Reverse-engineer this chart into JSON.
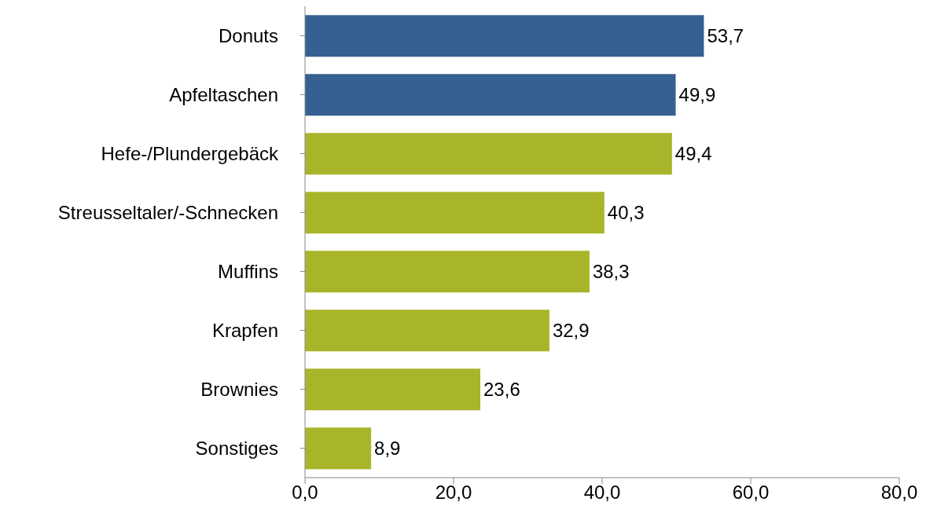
{
  "chart_data": {
    "type": "bar",
    "orientation": "horizontal",
    "categories": [
      "Donuts",
      "Apfeltaschen",
      "Hefe-/Plundergebäck",
      "Streusseltaler/-Schnecken",
      "Muffins",
      "Krapfen",
      "Brownies",
      "Sonstiges"
    ],
    "values": [
      53.7,
      49.9,
      49.4,
      40.3,
      38.3,
      32.9,
      23.6,
      8.9
    ],
    "colors": [
      "#366092",
      "#366092",
      "#a8b52a",
      "#a8b52a",
      "#a8b52a",
      "#a8b52a",
      "#a8b52a",
      "#a8b52a"
    ],
    "value_labels": [
      "53,7",
      "49,9",
      "49,4",
      "40,3",
      "38,3",
      "32,9",
      "23,6",
      "8,9"
    ],
    "xlim": [
      0,
      80
    ],
    "xticks": [
      {
        "value": 0,
        "label": "0,0"
      },
      {
        "value": 20,
        "label": "20,0"
      },
      {
        "value": 40,
        "label": "40,0"
      },
      {
        "value": 60,
        "label": "60,0"
      },
      {
        "value": 80,
        "label": "80,0"
      }
    ],
    "grid": false
  }
}
